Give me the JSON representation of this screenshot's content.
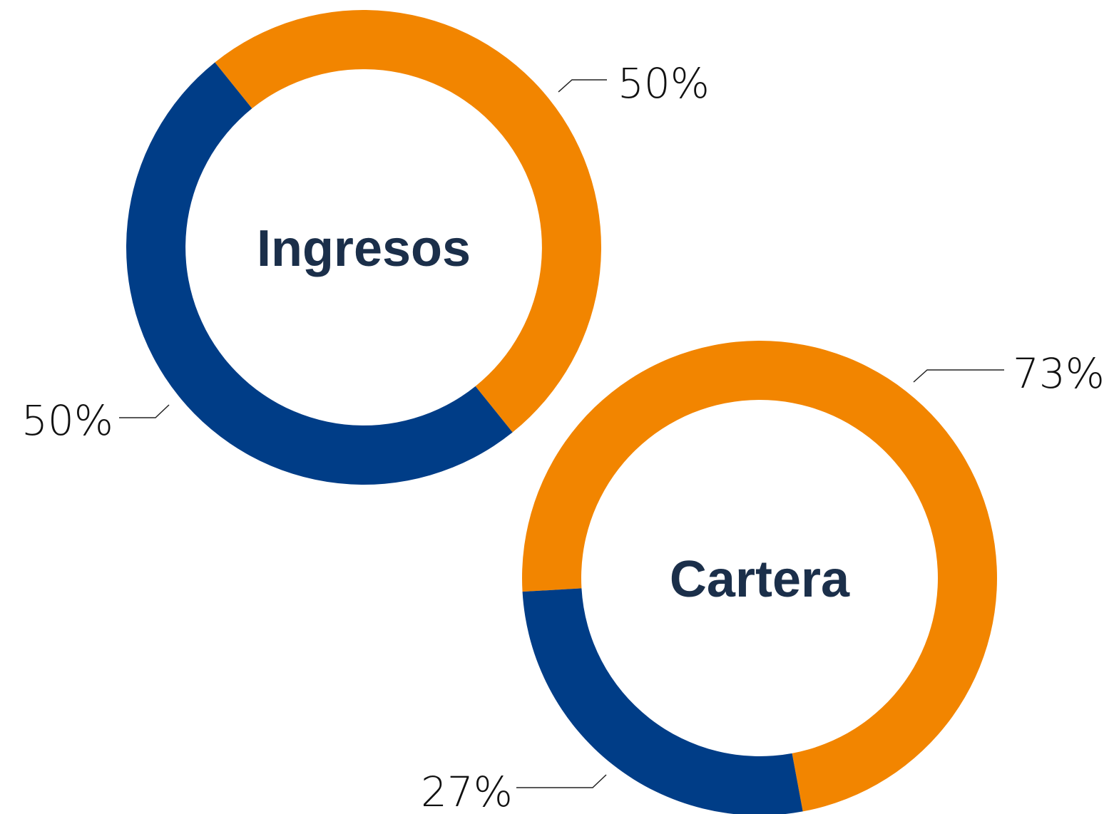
{
  "chart_data": [
    {
      "type": "pie",
      "center_label": "Ingresos",
      "values": [
        50,
        50
      ],
      "value_labels": [
        "50%",
        "50%"
      ],
      "colors": [
        "#f28500",
        "#003d87"
      ]
    },
    {
      "type": "pie",
      "center_label": "Cartera",
      "values": [
        73,
        27
      ],
      "value_labels": [
        "73%",
        "27%"
      ],
      "colors": [
        "#f28500",
        "#003d87"
      ]
    }
  ]
}
